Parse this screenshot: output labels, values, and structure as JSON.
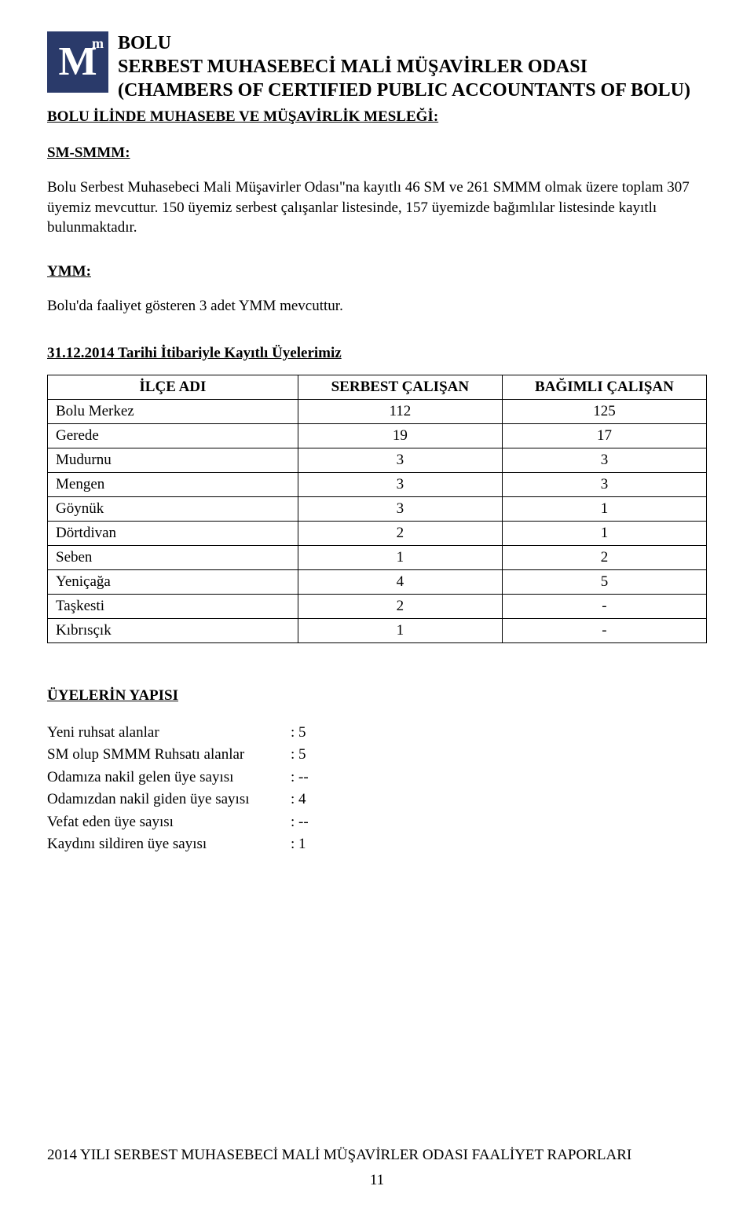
{
  "header": {
    "line1": "BOLU",
    "line2": "SERBEST MUHASEBECİ MALİ MÜŞAVİRLER ODASI",
    "line3": "(CHAMBERS OF CERTIFIED PUBLIC ACCOUNTANTS OF BOLU)",
    "logo_big": "M",
    "logo_small": "m"
  },
  "section_title": "BOLU İLİNDE MUHASEBE VE MÜŞAVİRLİK MESLEĞİ:",
  "sm_heading": "SM-SMMM:",
  "sm_body": "Bolu Serbest Muhasebeci Mali Müşavirler Odası\"na kayıtlı 46 SM ve 261 SMMM olmak üzere toplam 307 üyemiz mevcuttur. 150 üyemiz serbest çalışanlar listesinde, 157 üyemizde bağımlılar listesinde kayıtlı bulunmaktadır.",
  "ymm_heading": "YMM:",
  "ymm_body": "Bolu'da faaliyet gösteren 3 adet YMM mevcuttur.",
  "date_heading": "31.12.2014 Tarihi İtibariyle Kayıtlı Üyelerimiz",
  "table": {
    "columns": [
      "İLÇE ADI",
      "SERBEST ÇALIŞAN",
      "BAĞIMLI ÇALIŞAN"
    ],
    "rows": [
      [
        "Bolu Merkez",
        "112",
        "125"
      ],
      [
        "Gerede",
        "19",
        "17"
      ],
      [
        "Mudurnu",
        "3",
        "3"
      ],
      [
        "Mengen",
        "3",
        "3"
      ],
      [
        "Göynük",
        "3",
        "1"
      ],
      [
        "Dörtdivan",
        "2",
        "1"
      ],
      [
        "Seben",
        "1",
        "2"
      ],
      [
        "Yeniçağa",
        "4",
        "5"
      ],
      [
        "Taşkesti",
        "2",
        "-"
      ],
      [
        "Kıbrısçık",
        "1",
        "-"
      ]
    ]
  },
  "uyeler_heading": "ÜYELERİN YAPISI",
  "kv": [
    {
      "label": "Yeni ruhsat alanlar",
      "value": ": 5"
    },
    {
      "label": "SM olup SMMM Ruhsatı alanlar",
      "value": ": 5"
    },
    {
      "label": "Odamıza nakil gelen üye sayısı",
      "value": ": --"
    },
    {
      "label": "Odamızdan nakil giden üye sayısı",
      "value": ": 4"
    },
    {
      "label": "Vefat eden üye sayısı",
      "value": ": --"
    },
    {
      "label": "Kaydını sildiren üye sayısı",
      "value": ": 1"
    }
  ],
  "footer": "2014 YILI SERBEST MUHASEBECİ MALİ MÜŞAVİRLER ODASI FAALİYET RAPORLARI",
  "page_number": "11"
}
